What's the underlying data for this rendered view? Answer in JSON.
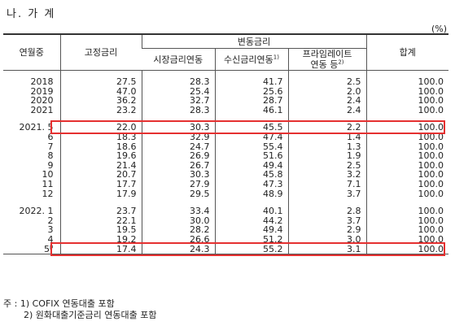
{
  "title": "나. 가 계",
  "unit": "(%)",
  "headers": {
    "period": "연월중",
    "fixed": "고정금리",
    "variable_group": "변동금리",
    "market": "시장금리연동",
    "deposit": "수신금리연동",
    "deposit_sup": "1)",
    "prime_line1": "프라임레이트",
    "prime_line2": "연동 등",
    "prime_sup": "2)",
    "total": "합계"
  },
  "rows": [
    {
      "label": "2018",
      "fixed": "27.5",
      "market": "28.3",
      "deposit": "41.7",
      "prime": "2.5",
      "total": "100.0"
    },
    {
      "label": "2019",
      "fixed": "47.0",
      "market": "25.4",
      "deposit": "25.6",
      "prime": "2.0",
      "total": "100.0"
    },
    {
      "label": "2020",
      "fixed": "36.2",
      "market": "32.7",
      "deposit": "28.7",
      "prime": "2.4",
      "total": "100.0"
    },
    {
      "label": "2021",
      "fixed": "23.2",
      "market": "28.3",
      "deposit": "46.1",
      "prime": "2.4",
      "total": "100.0"
    },
    {
      "label": "2021. 5",
      "fixed": "22.0",
      "market": "30.3",
      "deposit": "45.5",
      "prime": "2.2",
      "total": "100.0"
    },
    {
      "label": "6",
      "fixed": "18.3",
      "market": "32.9",
      "deposit": "47.4",
      "prime": "1.4",
      "total": "100.0"
    },
    {
      "label": "7",
      "fixed": "18.6",
      "market": "24.7",
      "deposit": "55.4",
      "prime": "1.3",
      "total": "100.0"
    },
    {
      "label": "8",
      "fixed": "19.6",
      "market": "26.9",
      "deposit": "51.6",
      "prime": "1.9",
      "total": "100.0"
    },
    {
      "label": "9",
      "fixed": "21.4",
      "market": "26.7",
      "deposit": "49.4",
      "prime": "2.5",
      "total": "100.0"
    },
    {
      "label": "10",
      "fixed": "20.7",
      "market": "30.3",
      "deposit": "45.8",
      "prime": "3.2",
      "total": "100.0"
    },
    {
      "label": "11",
      "fixed": "17.7",
      "market": "27.9",
      "deposit": "47.3",
      "prime": "7.1",
      "total": "100.0"
    },
    {
      "label": "12",
      "fixed": "17.9",
      "market": "29.5",
      "deposit": "48.9",
      "prime": "3.7",
      "total": "100.0"
    },
    {
      "label": "2022. 1",
      "fixed": "23.7",
      "market": "33.4",
      "deposit": "40.1",
      "prime": "2.8",
      "total": "100.0"
    },
    {
      "label": "2",
      "fixed": "22.1",
      "market": "30.0",
      "deposit": "44.2",
      "prime": "3.7",
      "total": "100.0"
    },
    {
      "label": "3",
      "fixed": "19.5",
      "market": "28.2",
      "deposit": "49.4",
      "prime": "2.9",
      "total": "100.0"
    },
    {
      "label": "4",
      "fixed": "19.2",
      "market": "26.6",
      "deposit": "51.2",
      "prime": "3.0",
      "total": "100.0"
    },
    {
      "label": "5",
      "label_sup": "p",
      "fixed": "17.4",
      "market": "24.3",
      "deposit": "55.2",
      "prime": "3.1",
      "total": "100.0"
    }
  ],
  "notes": {
    "prefix": "주 :",
    "note1": "1) COFIX 연동대출 포함",
    "note2": "2) 원화대출기준금리 연동대출 포함"
  },
  "colors": {
    "highlight": "#e53030"
  }
}
